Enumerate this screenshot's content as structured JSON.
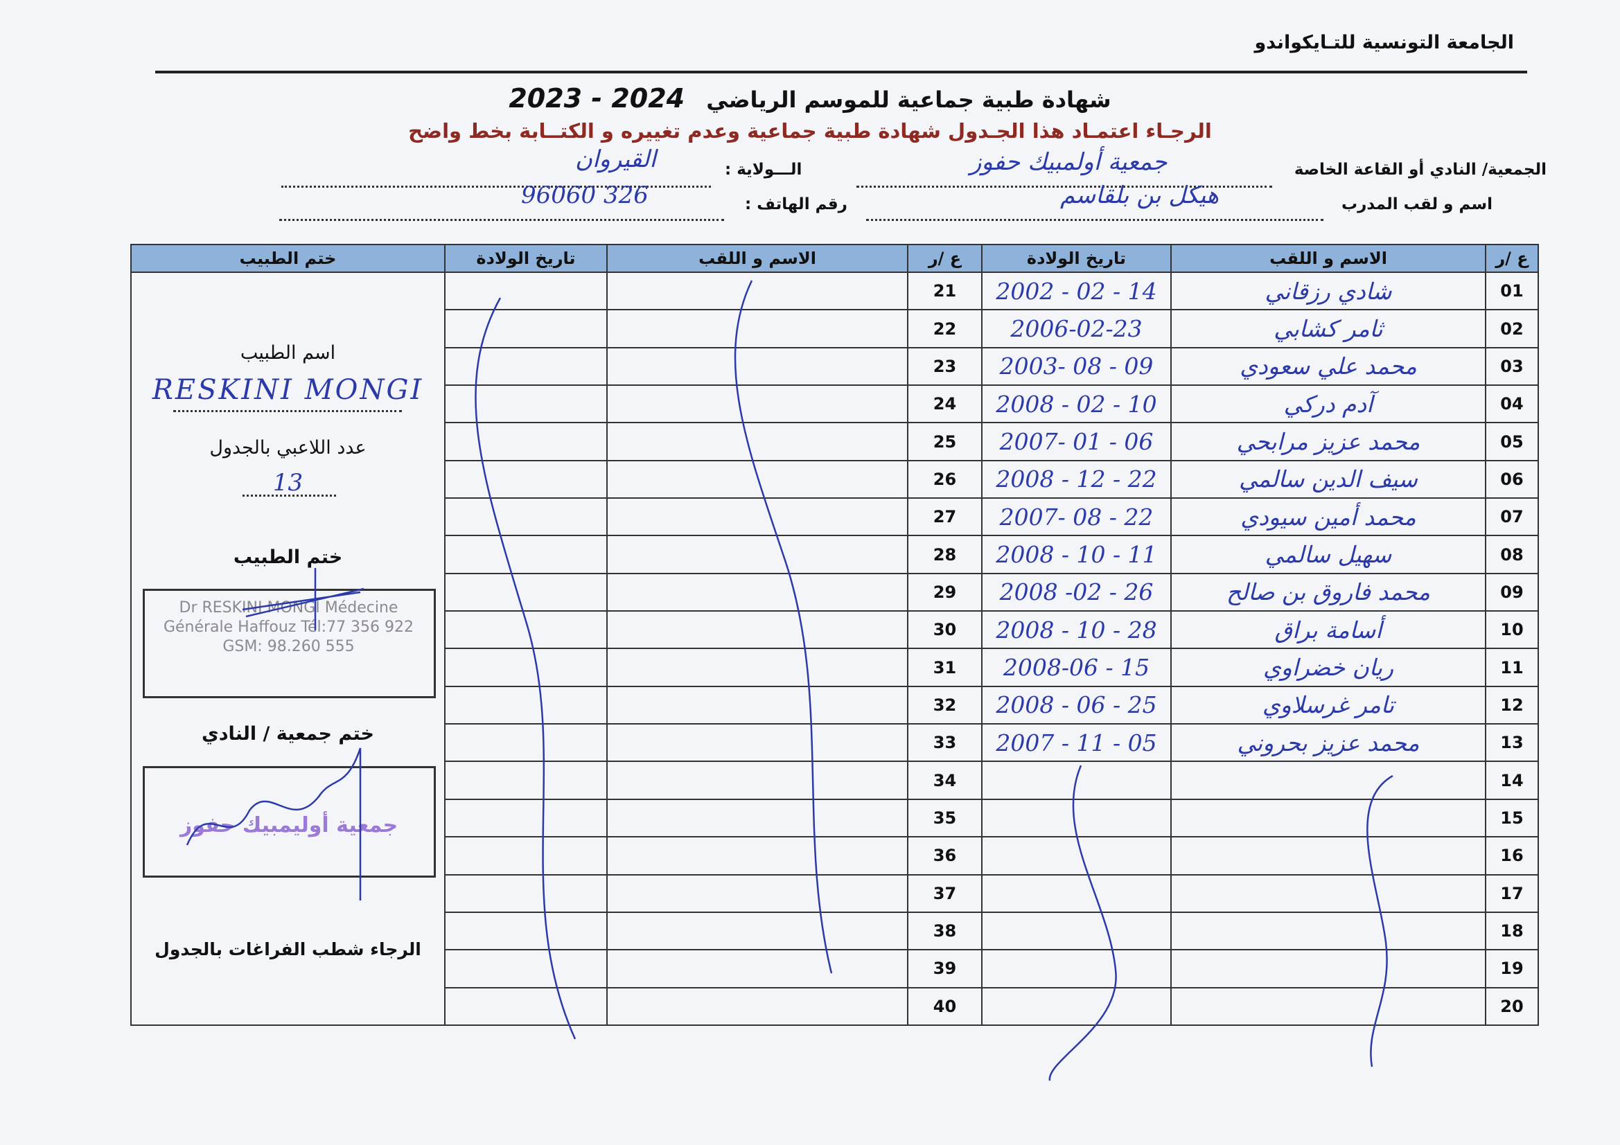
{
  "header": {
    "organization": "الجامعة التونسية للتـايكواندو",
    "title": "شهادة طبية جماعية   للموسم الرياضي",
    "season": "2023 - 2024",
    "instruction": "الرجـاء اعتمـاد هذا الجـدول  شهادة طبية جماعية وعدم تغييره و الكتــابة بخط واضح"
  },
  "form": {
    "club_label": "الجمعية/ النادي أو القاعة الخاصة",
    "club_value": "جمعية أولمبيك حفوز",
    "state_label": "الـــولاية :",
    "state_value": "القيروان",
    "coach_label": "اسم و لقب المدرب",
    "coach_value": "هيكل بن بلقاسم",
    "phone_label": "رقم الهاتف :",
    "phone_value": "96060 326"
  },
  "table": {
    "headers": {
      "num": "ع /ر",
      "name": "الاسم و اللقب",
      "dob": "تاريخ الولادة",
      "stamp": "ختم الطبيب"
    },
    "rows_left": [
      {
        "num": "01",
        "name": "شادي رزقاني",
        "dob": "2002 - 02 - 14"
      },
      {
        "num": "02",
        "name": "ثامر كشابي",
        "dob": "2006-02-23"
      },
      {
        "num": "03",
        "name": "محمد علي سعودي",
        "dob": "2003- 08 - 09"
      },
      {
        "num": "04",
        "name": "آدم دركي",
        "dob": "2008 - 02 - 10"
      },
      {
        "num": "05",
        "name": "محمد عزيز مرابحي",
        "dob": "2007- 01 - 06"
      },
      {
        "num": "06",
        "name": "سيف الدين سالمي",
        "dob": "2008 - 12 - 22"
      },
      {
        "num": "07",
        "name": "محمد أمين سيودي",
        "dob": "2007- 08 - 22"
      },
      {
        "num": "08",
        "name": "سهيل سالمي",
        "dob": "2008 - 10 - 11"
      },
      {
        "num": "09",
        "name": "محمد فاروق بن صالح",
        "dob": "2008 -02 - 26"
      },
      {
        "num": "10",
        "name": "أسامة براق",
        "dob": "2008 - 10 - 28"
      },
      {
        "num": "11",
        "name": "ريان خضراوي",
        "dob": "2008-06 - 15"
      },
      {
        "num": "12",
        "name": "تامر غرسلاوي",
        "dob": "2008 - 06 - 25"
      },
      {
        "num": "13",
        "name": "محمد عزيز بحروني",
        "dob": "2007 - 11 - 05"
      },
      {
        "num": "14",
        "name": "",
        "dob": ""
      },
      {
        "num": "15",
        "name": "",
        "dob": ""
      },
      {
        "num": "16",
        "name": "",
        "dob": ""
      },
      {
        "num": "17",
        "name": "",
        "dob": ""
      },
      {
        "num": "18",
        "name": "",
        "dob": ""
      },
      {
        "num": "19",
        "name": "",
        "dob": ""
      },
      {
        "num": "20",
        "name": "",
        "dob": ""
      }
    ],
    "rows_right_nums": [
      "21",
      "22",
      "23",
      "24",
      "25",
      "26",
      "27",
      "28",
      "29",
      "30",
      "31",
      "32",
      "33",
      "34",
      "35",
      "36",
      "37",
      "38",
      "39",
      "40"
    ]
  },
  "doctor_panel": {
    "doctor_name_label": "اسم الطبيب",
    "doctor_name_value": "RESKINI MONGI",
    "player_count_label": "عدد اللاعبي بالجدول",
    "player_count_value": "13",
    "doctor_stamp_label": "ختم الطبيب",
    "doctor_stamp_text": "Dr RESKINI MONGI Médecine Générale Haffouz Tél:77 356 922 GSM: 98.260 555",
    "club_stamp_label": "ختم جمعية / النادي",
    "club_stamp_text": "جمعية أوليمبيك حفوز",
    "footer_note": "الرجاء شطب  الفراغات بالجدول"
  },
  "colors": {
    "header_fill": "#8eb2da",
    "ink": "#2b3aa8",
    "instruction": "#8e2a22",
    "club_stamp": "#9a7ad6"
  }
}
